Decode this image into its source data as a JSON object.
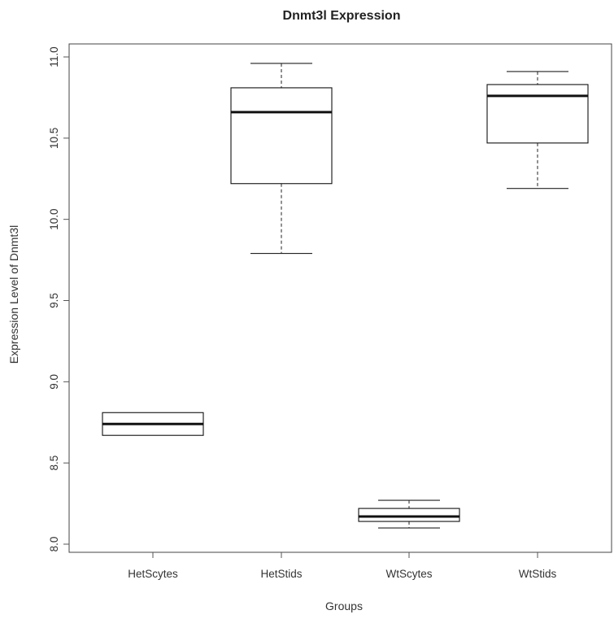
{
  "chart_data": {
    "type": "boxplot",
    "title": "Dnmt3l Expression",
    "xlabel": "Groups",
    "ylabel": "Expression Level of Dnmt3l",
    "ylim": [
      8.0,
      11.0
    ],
    "yticks": [
      8.0,
      8.5,
      9.0,
      9.5,
      10.0,
      10.5,
      11.0
    ],
    "ytick_labels": [
      "8.0",
      "8.5",
      "9.0",
      "9.5",
      "10.0",
      "10.5",
      "11.0"
    ],
    "grid": false,
    "categories": [
      "HetScytes",
      "HetStids",
      "WtScytes",
      "WtStids"
    ],
    "boxes": [
      {
        "category": "HetScytes",
        "min": 8.67,
        "q1": 8.67,
        "median": 8.74,
        "q3": 8.81,
        "max": 8.81
      },
      {
        "category": "HetStids",
        "min": 9.79,
        "q1": 10.22,
        "median": 10.66,
        "q3": 10.81,
        "max": 10.96
      },
      {
        "category": "WtScytes",
        "min": 8.1,
        "q1": 8.14,
        "median": 8.17,
        "q3": 8.22,
        "max": 8.27
      },
      {
        "category": "WtStids",
        "min": 10.19,
        "q1": 10.47,
        "median": 10.76,
        "q3": 10.83,
        "max": 10.91
      }
    ]
  }
}
